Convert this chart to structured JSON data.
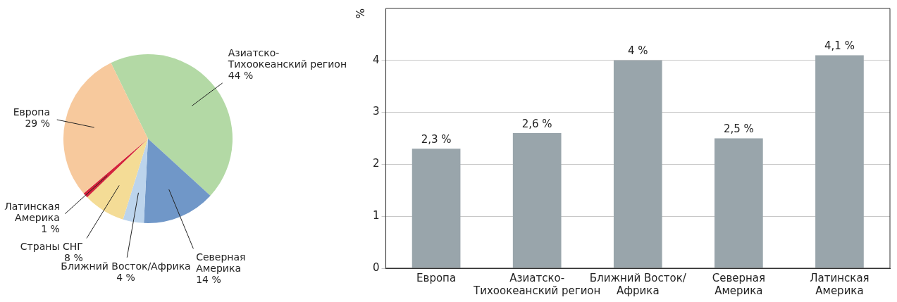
{
  "chart_data": [
    {
      "type": "pie",
      "categories": [
        "Азиатско-\nТихоокеанский регион",
        "Северная\nАмерика",
        "Ближний Восток/Африка",
        "Страны СНГ",
        "Латинская\nАмерика",
        "Европа"
      ],
      "values": [
        44,
        14,
        4,
        8,
        1,
        29
      ],
      "colors": [
        "#b3d9a5",
        "#7097c8",
        "#bcd4ec",
        "#f4dc96",
        "#d4243c",
        "#f7c99d"
      ],
      "value_labels": [
        "44 %",
        "14 %",
        "4 %",
        "8 %",
        "1 %",
        "29 %"
      ]
    },
    {
      "type": "bar",
      "categories": [
        "Европа",
        "Азиатско-\nТихоокеанский регион",
        "Ближний Восток/\nАфрика",
        "Северная\nАмерика",
        "Латинская\nАмерика"
      ],
      "values": [
        2.3,
        2.6,
        4,
        2.5,
        4.1
      ],
      "color": "#99a5ab",
      "value_labels": [
        "2,3 %",
        "2,6 %",
        "4 %",
        "2,5 %",
        "4,1 %"
      ],
      "ylabel": "%",
      "ylim": [
        0,
        5
      ],
      "yticks": [
        0,
        1,
        2,
        3,
        4
      ],
      "grid": "y"
    }
  ]
}
